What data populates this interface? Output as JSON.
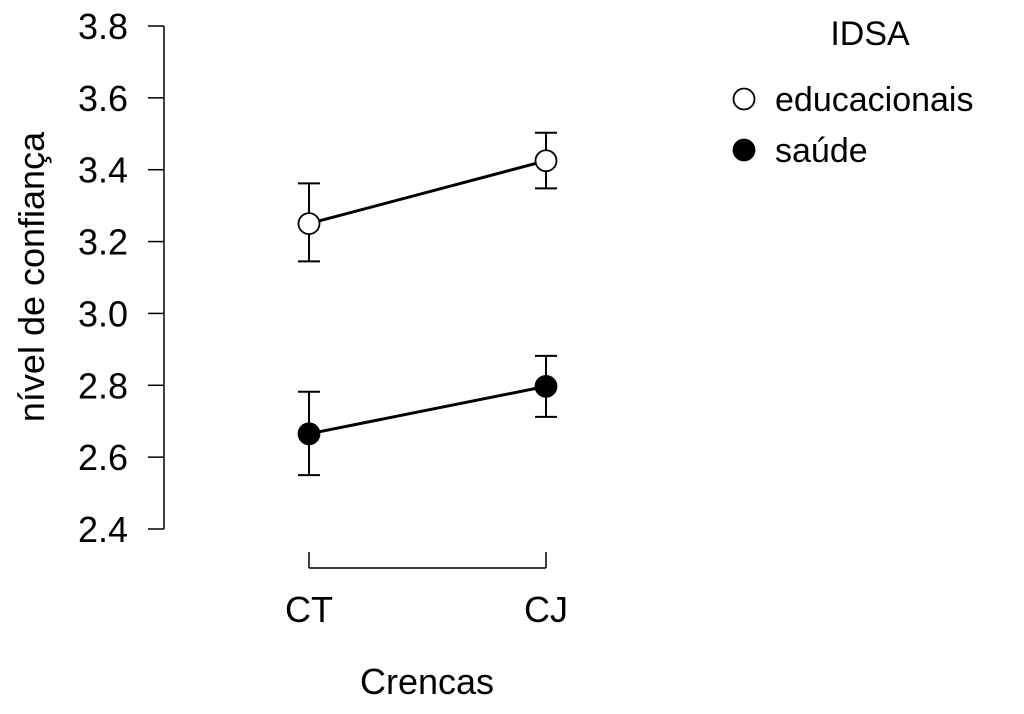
{
  "chart_data": {
    "type": "line",
    "xlabel": "Crencas",
    "ylabel": "nível de confiança",
    "categories": [
      "CT",
      "CJ"
    ],
    "ylim": [
      2.4,
      3.8
    ],
    "yticks": [
      "2.4",
      "2.6",
      "2.8",
      "3.0",
      "3.2",
      "3.4",
      "3.6",
      "3.8"
    ],
    "grid": false,
    "legend": {
      "title": "IDSA",
      "placement": "top-right"
    },
    "series": [
      {
        "name": "educacionais",
        "marker": "open-circle",
        "values": [
          3.25,
          3.425
        ],
        "error_low": [
          3.145,
          3.348
        ],
        "error_high": [
          3.362,
          3.503
        ]
      },
      {
        "name": "saúde",
        "marker": "filled-circle",
        "values": [
          2.665,
          2.797
        ],
        "error_low": [
          2.55,
          2.712
        ],
        "error_high": [
          2.782,
          2.882
        ]
      }
    ],
    "colors": {
      "line": "#000000",
      "open_fill": "#ffffff",
      "filled_fill": "#000000"
    }
  }
}
